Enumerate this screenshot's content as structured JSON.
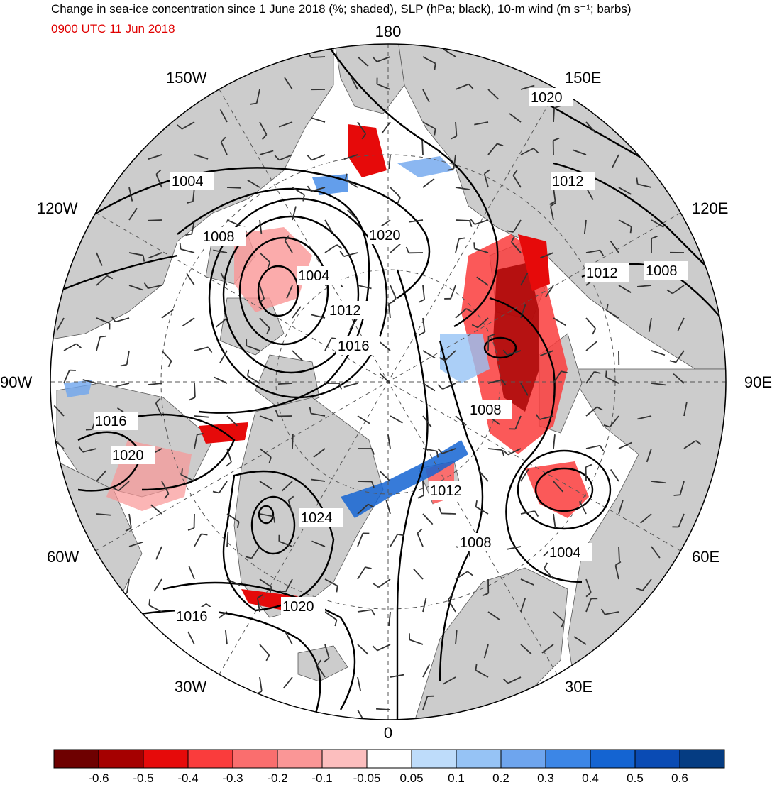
{
  "header": {
    "title": "Change in sea-ice concentration since 1 June 2018 (%; shaded), SLP (hPa; black), 10-m wind (m s⁻¹; barbs)",
    "valid_time": "0900 UTC 11 Jun 2018"
  },
  "map": {
    "projection": "north polar stereographic",
    "longitude_labels": {
      "top": "180",
      "bottom": "0",
      "left": "90W",
      "right": "90E",
      "upper_left_1": "150W",
      "upper_left_2": "120W",
      "upper_right_1": "150E",
      "upper_right_2": "120E",
      "lower_left_1": "60W",
      "lower_left_2": "30W",
      "lower_right_1": "60E",
      "lower_right_2": "30E"
    },
    "slp_contour_labels": [
      "1004",
      "1008",
      "1004",
      "1012",
      "1016",
      "1020",
      "1020",
      "1012",
      "1012",
      "1008",
      "1008",
      "1016",
      "1020",
      "1024",
      "1012",
      "1008",
      "1004",
      "1020",
      "1016"
    ],
    "colors": {
      "land": "#cccccc",
      "ocean": "#ffffff",
      "contour": "#000000",
      "barb": "#333333"
    }
  },
  "colorbar": {
    "labels": [
      "-0.6",
      "-0.5",
      "-0.4",
      "-0.3",
      "-0.2",
      "-0.1",
      "-0.05",
      "0.05",
      "0.1",
      "0.2",
      "0.3",
      "0.4",
      "0.5",
      "0.6"
    ],
    "colors": [
      "#6e0000",
      "#a50000",
      "#e60a0a",
      "#fa3c3c",
      "#fa6e6e",
      "#fa9696",
      "#fcbebe",
      "#ffffff",
      "#bedcfa",
      "#96c3f5",
      "#6ea5ee",
      "#3c86e6",
      "#1464d2",
      "#0a4bb4",
      "#053c82"
    ]
  }
}
